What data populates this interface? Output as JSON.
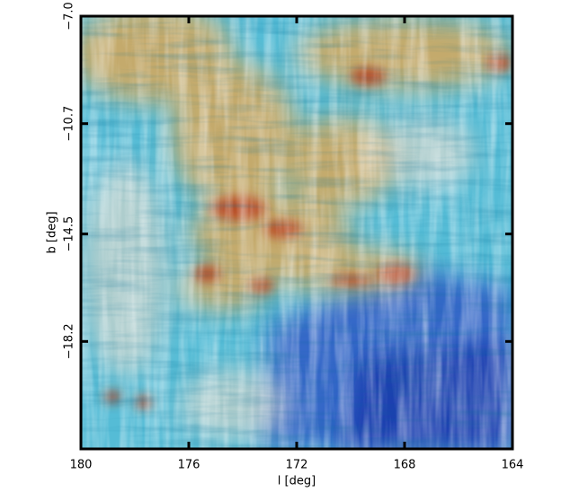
{
  "chart_data": {
    "type": "image",
    "xlabel": "l [deg]",
    "ylabel": "b [deg]",
    "xlim": [
      180,
      164
    ],
    "xticks": [
      180,
      176,
      172,
      168,
      164
    ],
    "ylim": [
      -7.0,
      -21.9
    ],
    "yticks": [
      {
        "value": -7.0,
        "label": "−7.0"
      },
      {
        "value": -10.7,
        "label": "−10.7"
      },
      {
        "value": -14.5,
        "label": "−14.5"
      },
      {
        "value": -18.2,
        "label": "−18.2"
      }
    ]
  }
}
